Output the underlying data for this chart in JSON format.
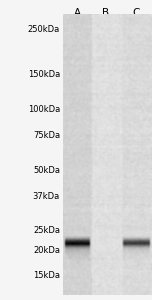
{
  "lanes": [
    "A",
    "B",
    "C"
  ],
  "mw_labels": [
    "250kDa",
    "150kDa",
    "100kDa",
    "75kDa",
    "50kDa",
    "37kDa",
    "25kDa",
    "20kDa",
    "15kDa"
  ],
  "mw_values": [
    250,
    150,
    100,
    75,
    50,
    37,
    25,
    20,
    15
  ],
  "log_mw_min": 1.146,
  "log_mw_max": 2.431,
  "gel_bg_value": 0.88,
  "lane_A_bg": 0.82,
  "lane_B_bg": 0.87,
  "lane_C_bg": 0.85,
  "band_mw": 22,
  "band_A_strength": 0.72,
  "band_C_strength": 0.6,
  "noise_std": 0.025,
  "label_fontsize": 6.0,
  "lane_label_fontsize": 7.5,
  "fig_bg": "#f5f5f5"
}
